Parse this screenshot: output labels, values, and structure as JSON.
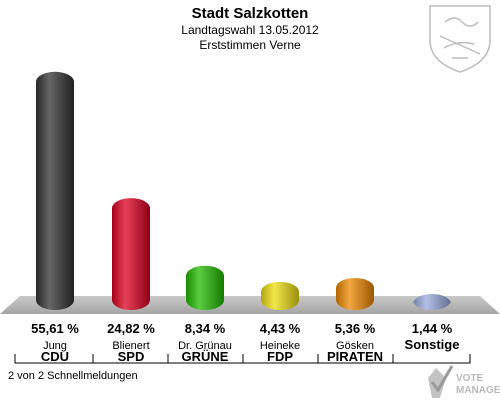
{
  "header": {
    "title": "Stadt Salzkotten",
    "subtitle": "Landtagswahl 13.05.2012",
    "subtitle2": "Erststimmen Verne"
  },
  "footer": {
    "status": "2 von 2 Schnellmeldungen",
    "logo_line1": "VOTE",
    "logo_line2": "MANAGER"
  },
  "chart_data": {
    "type": "bar",
    "categories": [
      "CDU",
      "SPD",
      "GRÜNE",
      "FDP",
      "PIRATEN",
      "Sonstige"
    ],
    "candidates": [
      "Jung",
      "Blienert",
      "Dr. Grünau",
      "Heineke",
      "Gösken",
      ""
    ],
    "values": [
      55.61,
      24.82,
      8.34,
      4.43,
      5.36,
      1.44
    ],
    "value_labels": [
      "55,61 %",
      "24,82 %",
      "8,34 %",
      "4,43 %",
      "5,36 %",
      "1,44 %"
    ],
    "colors": [
      "#333333",
      "#dd0022",
      "#22bb00",
      "#eedd11",
      "#ee8800",
      "#99aadd"
    ],
    "ylim": [
      0,
      58
    ],
    "grid": false,
    "legend": "none"
  }
}
